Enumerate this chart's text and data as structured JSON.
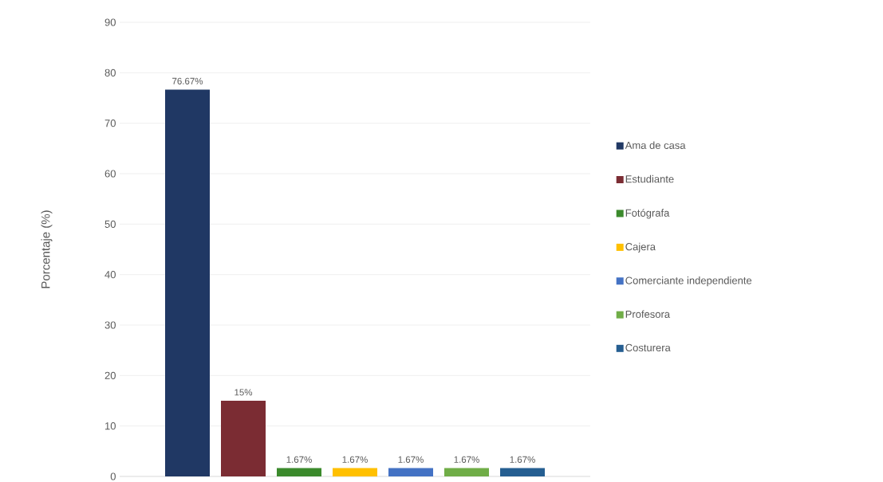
{
  "chart_data": {
    "type": "bar",
    "ylabel": "Porcentaje (%)",
    "categories": [
      null
    ],
    "series": [
      {
        "name": "Ama de casa",
        "color": "#203864",
        "values": [
          76.67
        ],
        "value_labels": [
          "76.67%"
        ]
      },
      {
        "name": "Estudiante",
        "color": "#7b2c33",
        "values": [
          15
        ],
        "value_labels": [
          "15%"
        ]
      },
      {
        "name": "Fotógrafa",
        "color": "#3b8a2c",
        "values": [
          1.67
        ],
        "value_labels": [
          "1.67%"
        ]
      },
      {
        "name": "Cajera",
        "color": "#ffc000",
        "values": [
          1.67
        ],
        "value_labels": [
          "1.67%"
        ]
      },
      {
        "name": "Comerciante independiente",
        "color": "#4472c4",
        "values": [
          1.67
        ],
        "value_labels": [
          "1.67%"
        ]
      },
      {
        "name": "Profesora",
        "color": "#70ad47",
        "values": [
          1.67
        ],
        "value_labels": [
          "1.67%"
        ]
      },
      {
        "name": "Costurera",
        "color": "#255e91",
        "values": [
          1.67
        ],
        "value_labels": [
          "1.67%"
        ]
      }
    ],
    "ylim": [
      0,
      90
    ],
    "yticks": [
      0,
      10,
      20,
      30,
      40,
      50,
      60,
      70,
      80,
      90
    ],
    "grid": "y",
    "legend": "right"
  }
}
